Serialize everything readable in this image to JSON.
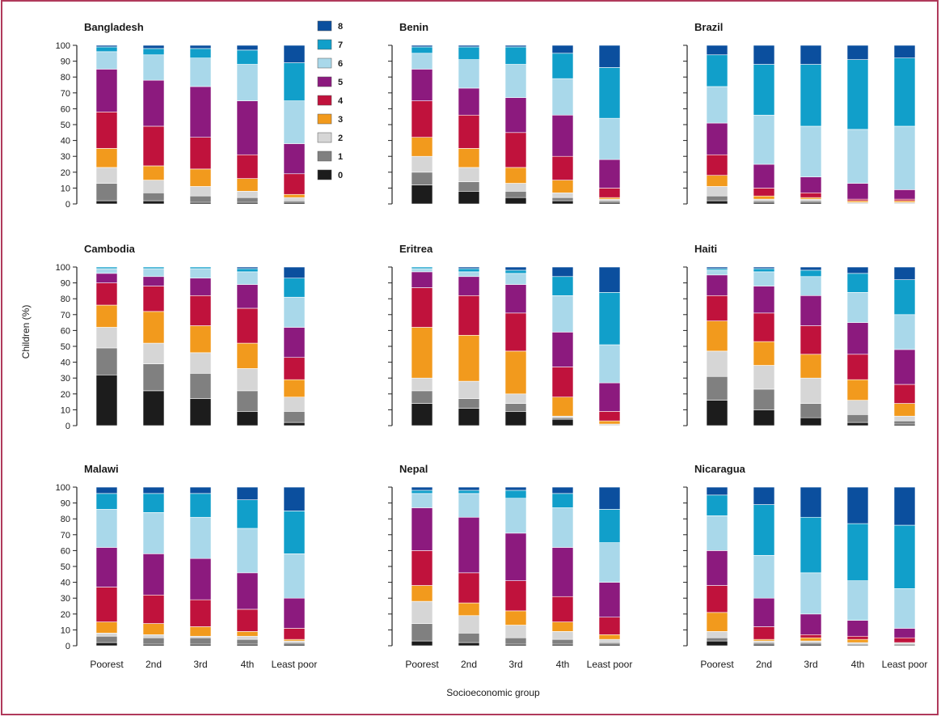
{
  "chart_data": {
    "type": "bar",
    "stacked": true,
    "ylabel": "Children (%)",
    "xlabel": "Socioeconomic group",
    "ylim": [
      0,
      100
    ],
    "yticks": [
      0,
      10,
      20,
      30,
      40,
      50,
      60,
      70,
      80,
      90,
      100
    ],
    "categories": [
      "Poorest",
      "2nd",
      "3rd",
      "4th",
      "Least poor"
    ],
    "stack_levels": [
      "0",
      "1",
      "2",
      "3",
      "4",
      "5",
      "6",
      "7",
      "8"
    ],
    "legend": {
      "position": "top-left-panel-right",
      "entries": [
        "8",
        "7",
        "6",
        "5",
        "4",
        "3",
        "2",
        "1",
        "0"
      ]
    },
    "colors": {
      "0": "#1c1c1c",
      "1": "#808080",
      "2": "#d6d6d6",
      "3": "#f29a1d",
      "4": "#c0123c",
      "5": "#8c1a7e",
      "6": "#a9d8ea",
      "7": "#119fca",
      "8": "#0b4f9e"
    },
    "panels": [
      {
        "name": "Bangladesh",
        "values": [
          [
            2,
            11,
            10,
            12,
            23,
            27,
            11,
            3,
            1
          ],
          [
            2,
            5,
            8,
            9,
            25,
            29,
            16,
            4,
            2
          ],
          [
            1,
            4,
            6,
            11,
            20,
            32,
            18,
            6,
            2
          ],
          [
            1,
            3,
            4,
            8,
            15,
            34,
            23,
            9,
            3
          ],
          [
            1,
            1,
            2,
            2,
            13,
            19,
            27,
            24,
            11
          ]
        ]
      },
      {
        "name": "Benin",
        "values": [
          [
            12,
            8,
            10,
            12,
            23,
            20,
            10,
            4,
            1
          ],
          [
            8,
            6,
            9,
            12,
            21,
            17,
            18,
            8,
            1
          ],
          [
            4,
            4,
            5,
            10,
            22,
            22,
            21,
            11,
            1
          ],
          [
            2,
            2,
            3,
            8,
            15,
            26,
            23,
            16,
            5
          ],
          [
            1,
            1,
            1,
            1,
            6,
            18,
            26,
            32,
            14
          ]
        ]
      },
      {
        "name": "Brazil",
        "values": [
          [
            2,
            3,
            6,
            7,
            13,
            20,
            23,
            20,
            6
          ],
          [
            1,
            1,
            1,
            2,
            5,
            15,
            31,
            32,
            12
          ],
          [
            1,
            1,
            1,
            1,
            3,
            10,
            32,
            39,
            12
          ],
          [
            0,
            0,
            1,
            1,
            1,
            10,
            34,
            44,
            9
          ],
          [
            0,
            0,
            1,
            1,
            1,
            6,
            40,
            43,
            8
          ]
        ]
      },
      {
        "name": "Cambodia",
        "values": [
          [
            32,
            17,
            13,
            14,
            14,
            6,
            3,
            1,
            0
          ],
          [
            22,
            17,
            13,
            20,
            16,
            6,
            5,
            1,
            0
          ],
          [
            17,
            16,
            13,
            17,
            19,
            11,
            6,
            1,
            0
          ],
          [
            9,
            13,
            14,
            16,
            22,
            15,
            8,
            2,
            1
          ],
          [
            2,
            7,
            9,
            11,
            14,
            19,
            19,
            12,
            7
          ]
        ]
      },
      {
        "name": "Eritrea",
        "values": [
          [
            14,
            8,
            8,
            32,
            25,
            10,
            2,
            1,
            0
          ],
          [
            11,
            6,
            11,
            29,
            25,
            12,
            3,
            2,
            1
          ],
          [
            9,
            5,
            6,
            27,
            24,
            18,
            7,
            2,
            2
          ],
          [
            4,
            1,
            1,
            12,
            19,
            22,
            23,
            12,
            6
          ],
          [
            0,
            0,
            1,
            2,
            6,
            18,
            24,
            33,
            16
          ]
        ]
      },
      {
        "name": "Haiti",
        "values": [
          [
            16,
            15,
            16,
            19,
            16,
            13,
            3,
            1,
            1
          ],
          [
            10,
            13,
            15,
            15,
            18,
            17,
            9,
            2,
            1
          ],
          [
            5,
            9,
            16,
            15,
            18,
            19,
            12,
            4,
            2
          ],
          [
            2,
            5,
            9,
            13,
            16,
            20,
            19,
            12,
            4
          ],
          [
            1,
            2,
            3,
            8,
            12,
            22,
            22,
            22,
            8
          ]
        ]
      },
      {
        "name": "Malawi",
        "values": [
          [
            2,
            4,
            2,
            7,
            22,
            25,
            24,
            10,
            4
          ],
          [
            1,
            4,
            2,
            7,
            18,
            26,
            26,
            12,
            4
          ],
          [
            1,
            4,
            1,
            6,
            17,
            26,
            26,
            15,
            4
          ],
          [
            1,
            3,
            2,
            3,
            14,
            23,
            28,
            18,
            8
          ],
          [
            1,
            1,
            1,
            1,
            7,
            19,
            28,
            27,
            15
          ]
        ]
      },
      {
        "name": "Nepal",
        "values": [
          [
            3,
            11,
            14,
            10,
            22,
            27,
            9,
            2,
            2
          ],
          [
            2,
            6,
            11,
            8,
            19,
            35,
            15,
            2,
            2
          ],
          [
            1,
            4,
            8,
            9,
            19,
            30,
            22,
            5,
            2
          ],
          [
            1,
            3,
            5,
            6,
            16,
            31,
            25,
            9,
            4
          ],
          [
            1,
            1,
            2,
            3,
            11,
            22,
            25,
            21,
            14
          ]
        ]
      },
      {
        "name": "Nicaragua",
        "values": [
          [
            3,
            2,
            4,
            12,
            17,
            22,
            22,
            13,
            5
          ],
          [
            1,
            1,
            1,
            1,
            8,
            18,
            27,
            32,
            11
          ],
          [
            1,
            1,
            1,
            2,
            2,
            13,
            26,
            35,
            19
          ],
          [
            0,
            1,
            1,
            2,
            2,
            10,
            25,
            36,
            23
          ],
          [
            0,
            1,
            1,
            0,
            3,
            6,
            25,
            40,
            24
          ]
        ]
      }
    ]
  }
}
